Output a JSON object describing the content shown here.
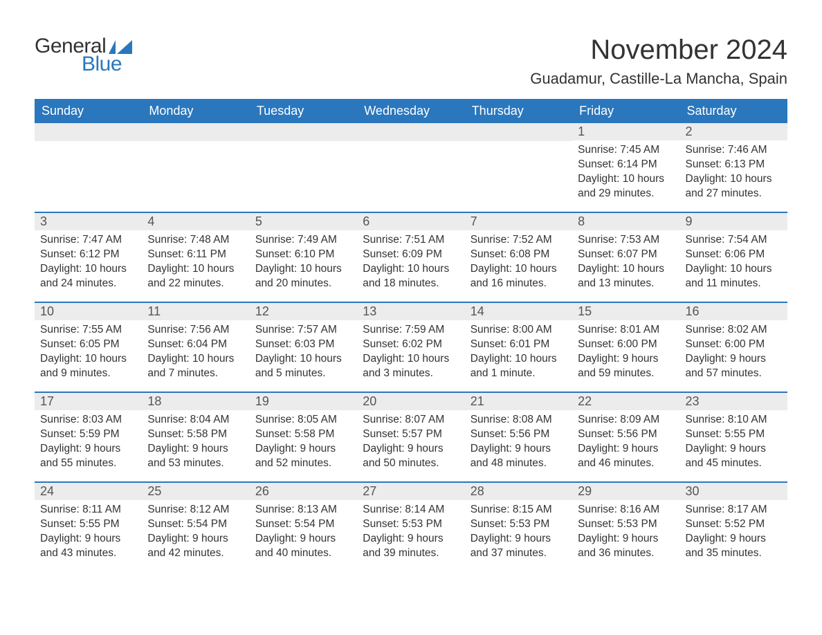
{
  "logo": {
    "text1": "General",
    "text2": "Blue",
    "flag_color": "#2a77bd"
  },
  "title": "November 2024",
  "location": "Guadamur, Castille-La Mancha, Spain",
  "colors": {
    "header_bg": "#2a77bd",
    "header_text": "#ffffff",
    "daynum_bg": "#ececec",
    "text": "#333333",
    "week_border": "#2a77bd"
  },
  "fonts": {
    "title_size": 40,
    "location_size": 22,
    "weekday_size": 18,
    "body_size": 15.5
  },
  "weekdays": [
    "Sunday",
    "Monday",
    "Tuesday",
    "Wednesday",
    "Thursday",
    "Friday",
    "Saturday"
  ],
  "weeks": [
    [
      {
        "empty": true
      },
      {
        "empty": true
      },
      {
        "empty": true
      },
      {
        "empty": true
      },
      {
        "empty": true
      },
      {
        "num": "1",
        "sunrise": "Sunrise: 7:45 AM",
        "sunset": "Sunset: 6:14 PM",
        "daylight": "Daylight: 10 hours and 29 minutes."
      },
      {
        "num": "2",
        "sunrise": "Sunrise: 7:46 AM",
        "sunset": "Sunset: 6:13 PM",
        "daylight": "Daylight: 10 hours and 27 minutes."
      }
    ],
    [
      {
        "num": "3",
        "sunrise": "Sunrise: 7:47 AM",
        "sunset": "Sunset: 6:12 PM",
        "daylight": "Daylight: 10 hours and 24 minutes."
      },
      {
        "num": "4",
        "sunrise": "Sunrise: 7:48 AM",
        "sunset": "Sunset: 6:11 PM",
        "daylight": "Daylight: 10 hours and 22 minutes."
      },
      {
        "num": "5",
        "sunrise": "Sunrise: 7:49 AM",
        "sunset": "Sunset: 6:10 PM",
        "daylight": "Daylight: 10 hours and 20 minutes."
      },
      {
        "num": "6",
        "sunrise": "Sunrise: 7:51 AM",
        "sunset": "Sunset: 6:09 PM",
        "daylight": "Daylight: 10 hours and 18 minutes."
      },
      {
        "num": "7",
        "sunrise": "Sunrise: 7:52 AM",
        "sunset": "Sunset: 6:08 PM",
        "daylight": "Daylight: 10 hours and 16 minutes."
      },
      {
        "num": "8",
        "sunrise": "Sunrise: 7:53 AM",
        "sunset": "Sunset: 6:07 PM",
        "daylight": "Daylight: 10 hours and 13 minutes."
      },
      {
        "num": "9",
        "sunrise": "Sunrise: 7:54 AM",
        "sunset": "Sunset: 6:06 PM",
        "daylight": "Daylight: 10 hours and 11 minutes."
      }
    ],
    [
      {
        "num": "10",
        "sunrise": "Sunrise: 7:55 AM",
        "sunset": "Sunset: 6:05 PM",
        "daylight": "Daylight: 10 hours and 9 minutes."
      },
      {
        "num": "11",
        "sunrise": "Sunrise: 7:56 AM",
        "sunset": "Sunset: 6:04 PM",
        "daylight": "Daylight: 10 hours and 7 minutes."
      },
      {
        "num": "12",
        "sunrise": "Sunrise: 7:57 AM",
        "sunset": "Sunset: 6:03 PM",
        "daylight": "Daylight: 10 hours and 5 minutes."
      },
      {
        "num": "13",
        "sunrise": "Sunrise: 7:59 AM",
        "sunset": "Sunset: 6:02 PM",
        "daylight": "Daylight: 10 hours and 3 minutes."
      },
      {
        "num": "14",
        "sunrise": "Sunrise: 8:00 AM",
        "sunset": "Sunset: 6:01 PM",
        "daylight": "Daylight: 10 hours and 1 minute."
      },
      {
        "num": "15",
        "sunrise": "Sunrise: 8:01 AM",
        "sunset": "Sunset: 6:00 PM",
        "daylight": "Daylight: 9 hours and 59 minutes."
      },
      {
        "num": "16",
        "sunrise": "Sunrise: 8:02 AM",
        "sunset": "Sunset: 6:00 PM",
        "daylight": "Daylight: 9 hours and 57 minutes."
      }
    ],
    [
      {
        "num": "17",
        "sunrise": "Sunrise: 8:03 AM",
        "sunset": "Sunset: 5:59 PM",
        "daylight": "Daylight: 9 hours and 55 minutes."
      },
      {
        "num": "18",
        "sunrise": "Sunrise: 8:04 AM",
        "sunset": "Sunset: 5:58 PM",
        "daylight": "Daylight: 9 hours and 53 minutes."
      },
      {
        "num": "19",
        "sunrise": "Sunrise: 8:05 AM",
        "sunset": "Sunset: 5:58 PM",
        "daylight": "Daylight: 9 hours and 52 minutes."
      },
      {
        "num": "20",
        "sunrise": "Sunrise: 8:07 AM",
        "sunset": "Sunset: 5:57 PM",
        "daylight": "Daylight: 9 hours and 50 minutes."
      },
      {
        "num": "21",
        "sunrise": "Sunrise: 8:08 AM",
        "sunset": "Sunset: 5:56 PM",
        "daylight": "Daylight: 9 hours and 48 minutes."
      },
      {
        "num": "22",
        "sunrise": "Sunrise: 8:09 AM",
        "sunset": "Sunset: 5:56 PM",
        "daylight": "Daylight: 9 hours and 46 minutes."
      },
      {
        "num": "23",
        "sunrise": "Sunrise: 8:10 AM",
        "sunset": "Sunset: 5:55 PM",
        "daylight": "Daylight: 9 hours and 45 minutes."
      }
    ],
    [
      {
        "num": "24",
        "sunrise": "Sunrise: 8:11 AM",
        "sunset": "Sunset: 5:55 PM",
        "daylight": "Daylight: 9 hours and 43 minutes."
      },
      {
        "num": "25",
        "sunrise": "Sunrise: 8:12 AM",
        "sunset": "Sunset: 5:54 PM",
        "daylight": "Daylight: 9 hours and 42 minutes."
      },
      {
        "num": "26",
        "sunrise": "Sunrise: 8:13 AM",
        "sunset": "Sunset: 5:54 PM",
        "daylight": "Daylight: 9 hours and 40 minutes."
      },
      {
        "num": "27",
        "sunrise": "Sunrise: 8:14 AM",
        "sunset": "Sunset: 5:53 PM",
        "daylight": "Daylight: 9 hours and 39 minutes."
      },
      {
        "num": "28",
        "sunrise": "Sunrise: 8:15 AM",
        "sunset": "Sunset: 5:53 PM",
        "daylight": "Daylight: 9 hours and 37 minutes."
      },
      {
        "num": "29",
        "sunrise": "Sunrise: 8:16 AM",
        "sunset": "Sunset: 5:53 PM",
        "daylight": "Daylight: 9 hours and 36 minutes."
      },
      {
        "num": "30",
        "sunrise": "Sunrise: 8:17 AM",
        "sunset": "Sunset: 5:52 PM",
        "daylight": "Daylight: 9 hours and 35 minutes."
      }
    ]
  ]
}
